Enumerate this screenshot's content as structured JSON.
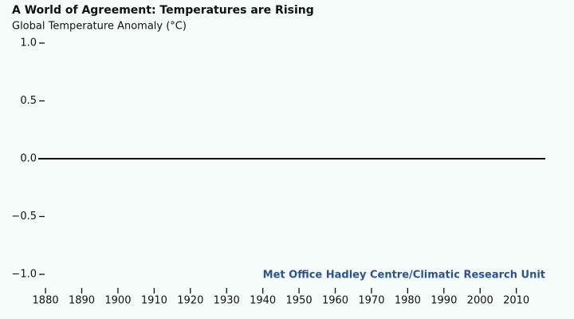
{
  "chart_data": {
    "type": "line",
    "title": "A World of Agreement: Temperatures are Rising",
    "y_label": "Global Temperature Anomaly (°C)",
    "annotation": "Met Office Hadley Centre/Climatic Research Unit",
    "annotation_color": "#2a5294",
    "xlim": [
      1878,
      2018
    ],
    "xticks": [
      1880,
      1890,
      1900,
      1910,
      1920,
      1930,
      1940,
      1950,
      1960,
      1970,
      1980,
      1990,
      2000,
      2010
    ],
    "ylim": [
      -1,
      1
    ],
    "yticks": [
      {
        "value": 1,
        "label": "1.0"
      },
      {
        "value": 0.5,
        "label": "0.5"
      },
      {
        "value": 0,
        "label": "0.0"
      },
      {
        "value": -0.5,
        "label": "−0.5"
      },
      {
        "value": -1,
        "label": "−1.0"
      }
    ]
  }
}
